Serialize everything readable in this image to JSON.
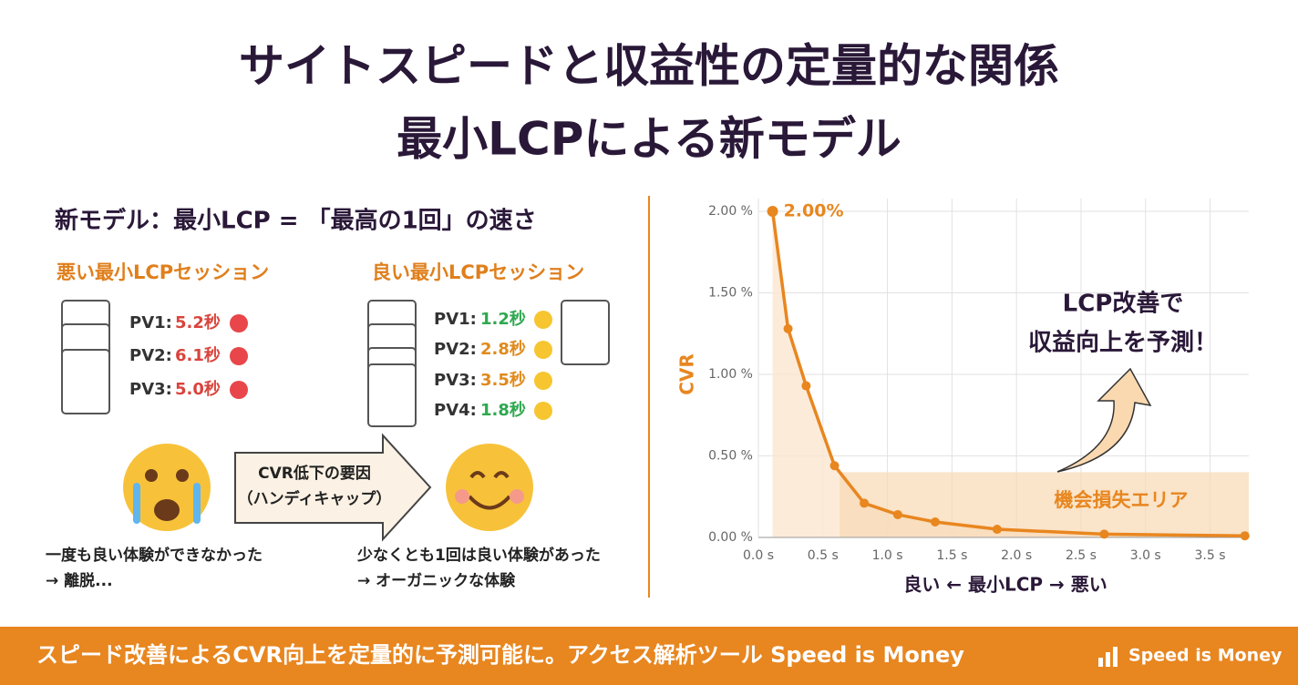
{
  "header": {
    "title": "サイトスピードと収益性の定量的な関係",
    "subtitle": "最小LCPによる新モデル"
  },
  "left": {
    "heading": "新モデル：最小LCP = 「最高の1回」の速さ",
    "bad": {
      "title": "悪い最小LCPセッション",
      "items": [
        {
          "label": "PV1:",
          "time": "5.2秒"
        },
        {
          "label": "PV2:",
          "time": "6.1秒"
        },
        {
          "label": "PV3:",
          "time": "5.0秒"
        }
      ],
      "caption": [
        "一度も良い体験ができなかった",
        "→ 離脱..."
      ]
    },
    "good": {
      "title": "良い最小LCPセッション",
      "items": [
        {
          "label": "PV1:",
          "time": "1.2秒"
        },
        {
          "label": "PV2:",
          "time": "2.8秒"
        },
        {
          "label": "PV3:",
          "time": "3.5秒"
        },
        {
          "label": "PV4:",
          "time": "1.8秒"
        }
      ],
      "caption": [
        "少なくとも1回は良い体験があった",
        "→ オーガニックな体験"
      ]
    },
    "arrow": [
      "CVR低下の要因",
      "（ハンディキャップ）"
    ]
  },
  "chart_data": {
    "type": "line",
    "color": "#e8861f",
    "x_label": "良い ← 最小LCP → 悪い",
    "y_label": "CVR",
    "x": [
      0.11,
      0.23,
      0.37,
      0.59,
      0.82,
      1.08,
      1.37,
      1.85,
      2.68,
      3.77
    ],
    "values": [
      2.0,
      1.28,
      0.93,
      0.44,
      0.21,
      0.14,
      0.095,
      0.05,
      0.02,
      0.01
    ],
    "value_labels": [
      "2.00%",
      null,
      null,
      null,
      null,
      null,
      null,
      null,
      null,
      null
    ],
    "xlim": [
      0,
      3.8
    ],
    "ylim": [
      0,
      2
    ],
    "xticks": [
      {
        "value": 0,
        "label": "0.0 s"
      },
      {
        "value": 0.5,
        "label": "0.5 s"
      },
      {
        "value": 1,
        "label": "1.0 s"
      },
      {
        "value": 1.5,
        "label": "1.5 s"
      },
      {
        "value": 2,
        "label": "2.0 s"
      },
      {
        "value": 2.5,
        "label": "2.5 s"
      },
      {
        "value": 3,
        "label": "3.0 s"
      },
      {
        "value": 3.5,
        "label": "3.5 s"
      }
    ],
    "yticks": [
      {
        "value": 0,
        "label": "0.00 %"
      },
      {
        "value": 0.5,
        "label": "0.50 %"
      },
      {
        "value": 1,
        "label": "1.00 %"
      },
      {
        "value": 1.5,
        "label": "1.50 %"
      },
      {
        "value": 2,
        "label": "2.00 %"
      }
    ],
    "grid": true,
    "loss_area": {
      "label": "機会損失エリア",
      "y": 0.4
    },
    "annotation": [
      "LCP改善で",
      "収益向上を予測！"
    ]
  },
  "footer": {
    "text": "スピード改善によるCVR向上を定量的に予測可能に。アクセス解析ツール Speed is Money",
    "logo": "Speed is Money"
  }
}
